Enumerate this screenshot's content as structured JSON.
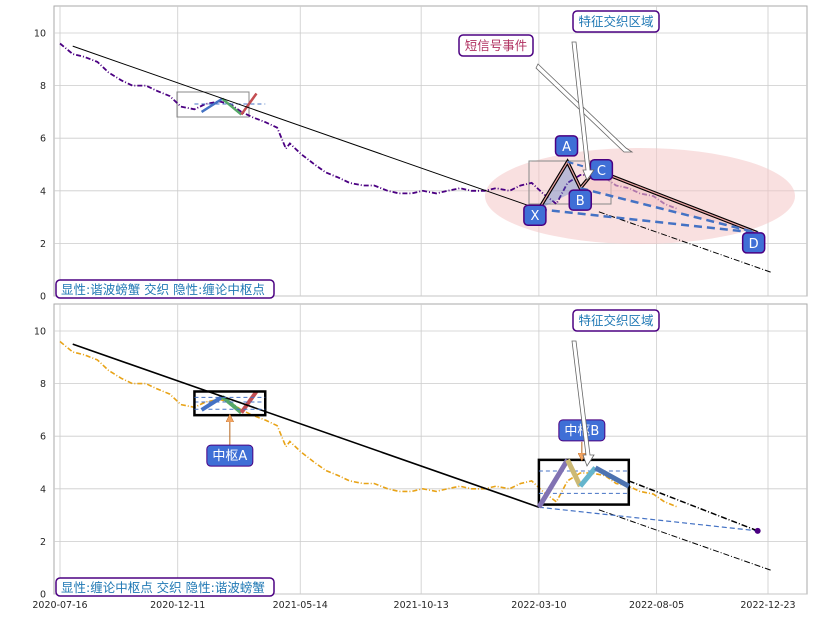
{
  "chart_data": [
    {
      "type": "line",
      "title": "",
      "xlabel": "",
      "ylabel": "",
      "ylim": [
        0,
        11
      ],
      "yticks": [
        0,
        2,
        4,
        6,
        8,
        10
      ],
      "grid": true,
      "price_color": "#4b0082",
      "price": {
        "x": [
          "2020-07-16",
          "2020-08-01",
          "2020-08-15",
          "2020-09-01",
          "2020-09-15",
          "2020-10-01",
          "2020-10-15",
          "2020-11-01",
          "2020-11-15",
          "2020-12-01",
          "2020-12-15",
          "2021-01-01",
          "2021-01-15",
          "2021-02-01",
          "2021-02-15",
          "2021-03-01",
          "2021-03-15",
          "2021-04-01",
          "2021-04-15",
          "2021-04-26",
          "2021-05-01",
          "2021-05-15",
          "2021-06-01",
          "2021-06-15",
          "2021-07-01",
          "2021-07-15",
          "2021-08-01",
          "2021-08-15",
          "2021-09-01",
          "2021-09-15",
          "2021-10-01",
          "2021-10-15",
          "2021-11-01",
          "2021-11-15",
          "2021-12-01",
          "2021-12-15",
          "2022-01-01",
          "2022-01-15",
          "2022-02-01",
          "2022-02-15",
          "2022-03-01",
          "2022-03-15",
          "2022-04-01",
          "2022-04-15",
          "2022-05-01",
          "2022-05-15",
          "2022-06-01",
          "2022-06-15",
          "2022-07-01",
          "2022-07-15",
          "2022-08-01",
          "2022-08-15",
          "2022-09-01"
        ],
        "y": [
          9.6,
          9.2,
          9.1,
          8.9,
          8.5,
          8.2,
          8.0,
          8.0,
          7.8,
          7.6,
          7.2,
          7.1,
          7.3,
          7.4,
          7.3,
          7.0,
          6.8,
          6.6,
          6.4,
          5.6,
          5.8,
          5.4,
          5.0,
          4.7,
          4.5,
          4.3,
          4.2,
          4.2,
          4.0,
          3.9,
          3.9,
          4.0,
          3.9,
          4.0,
          4.1,
          4.0,
          4.0,
          4.1,
          4.0,
          4.2,
          4.3,
          3.9,
          3.5,
          4.3,
          4.6,
          4.6,
          4.5,
          4.2,
          4.1,
          3.9,
          3.8,
          3.5,
          3.3
        ]
      },
      "trend_line": {
        "x": [
          "2020-08-01",
          "2022-03-10",
          "2022-12-27"
        ],
        "y": [
          9.5,
          3.3,
          0.9
        ]
      },
      "harmonic": {
        "points": [
          {
            "label": "X",
            "x": "2022-03-10",
            "y": 3.3
          },
          {
            "label": "A",
            "x": "2022-04-15",
            "y": 5.1
          },
          {
            "label": "B",
            "x": "2022-05-01",
            "y": 4.1
          },
          {
            "label": "C",
            "x": "2022-05-20",
            "y": 4.8
          },
          {
            "label": "D",
            "x": "2022-12-10",
            "y": 2.4
          }
        ]
      },
      "annotations": {
        "short_signal": "短信号事件",
        "feature_zone": "特征交织区域",
        "legend_text": "显性:谐波螃蟹 交织 隐性:缠论中枢点"
      }
    },
    {
      "type": "line",
      "title": "",
      "xlabel": "",
      "ylabel": "",
      "ylim": [
        0,
        11
      ],
      "yticks": [
        0,
        2,
        4,
        6,
        8,
        10
      ],
      "xticks": [
        "2020-07-16",
        "2020-12-11",
        "2021-05-14",
        "2021-10-13",
        "2022-03-10",
        "2022-08-05",
        "2022-12-23"
      ],
      "grid": true,
      "price_color": "#e8a317",
      "trend_line": {
        "x": [
          "2020-08-01",
          "2022-03-10",
          "2022-12-27"
        ],
        "y": [
          9.5,
          3.3,
          0.9
        ]
      },
      "centers": [
        {
          "label": "中枢A",
          "x0": "2021-01-01",
          "x1": "2021-03-31",
          "y0": 6.8,
          "y1": 7.7
        },
        {
          "label": "中枢B",
          "x0": "2022-03-10",
          "x1": "2022-07-01",
          "y0": 3.4,
          "y1": 5.1
        }
      ],
      "end_point": {
        "x": "2022-12-10",
        "y": 2.4
      },
      "annotations": {
        "feature_zone": "特征交织区域",
        "legend_text": "显性:缠论中枢点 交织 隐性:谐波螃蟹"
      }
    }
  ],
  "colors": {
    "grid": "#cccccc",
    "trend": "#000000",
    "harmonic_fill": "#4472c4",
    "zone_fill": "#f4c7c7",
    "label_border": "#4b0082",
    "label_text_blue": "#1f78b4",
    "label_text_red": "#b03060"
  }
}
